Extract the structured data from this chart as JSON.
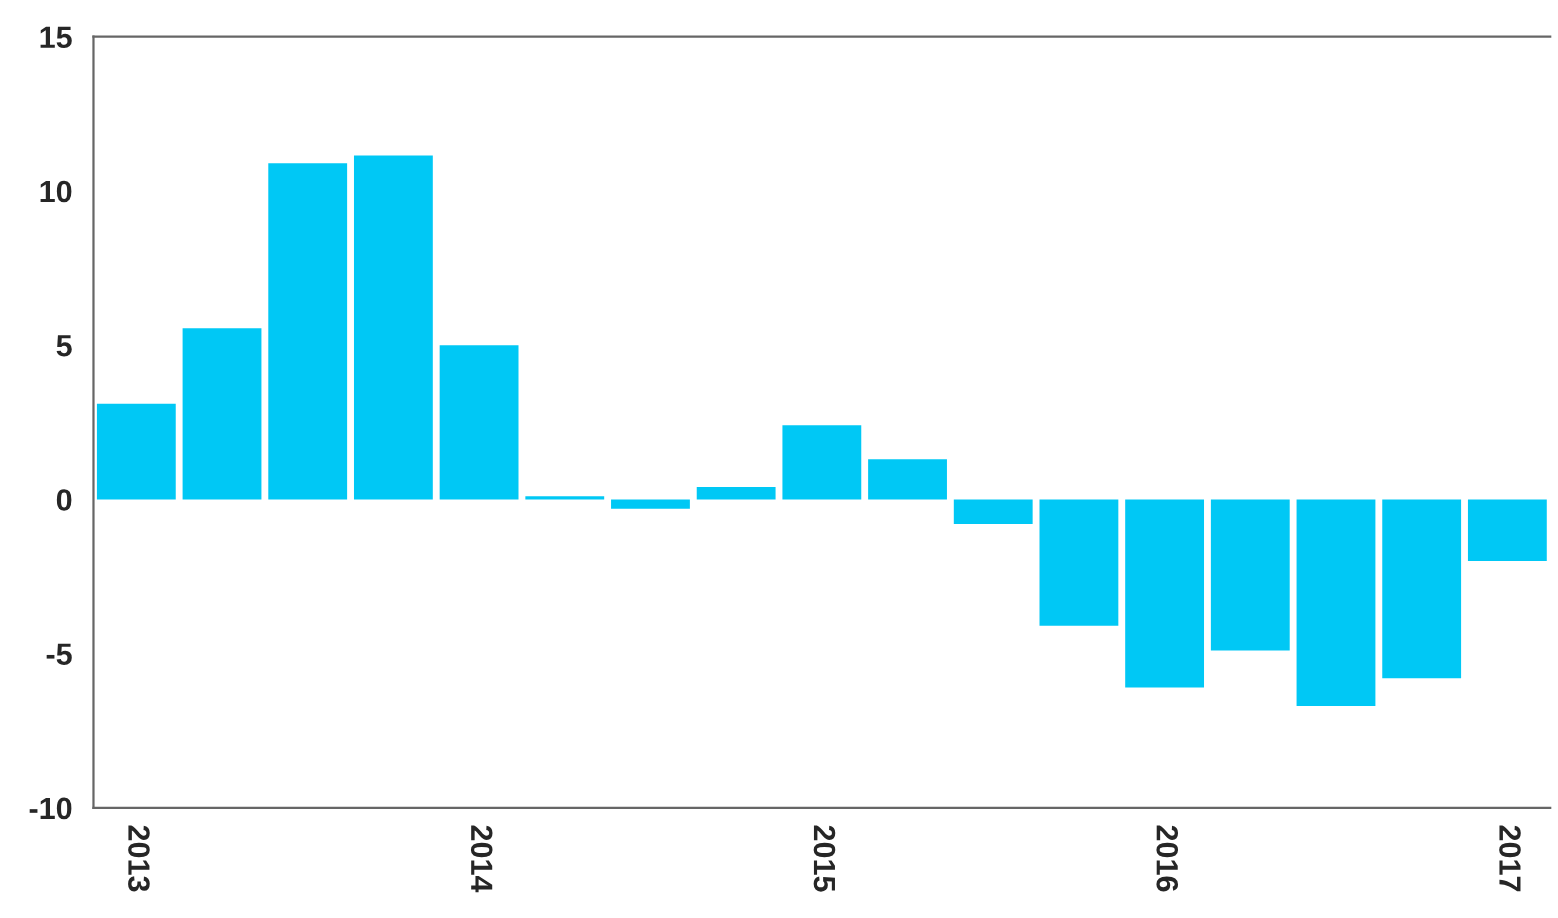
{
  "chart_data": {
    "type": "bar",
    "categories": [
      "2013",
      null,
      null,
      null,
      "2014",
      null,
      null,
      null,
      "2015",
      null,
      null,
      null,
      "2016",
      null,
      null,
      null,
      "2017"
    ],
    "values": [
      3.1,
      5.55,
      10.9,
      11.15,
      5.0,
      0.1,
      -0.3,
      0.4,
      2.4,
      1.3,
      -0.8,
      -4.1,
      -6.1,
      -4.9,
      -6.7,
      -5.8,
      -2.0
    ],
    "color": "#00c8f5",
    "ylim": [
      -10,
      15
    ],
    "yticks": [
      -10,
      -5,
      0,
      5,
      10,
      15
    ]
  }
}
